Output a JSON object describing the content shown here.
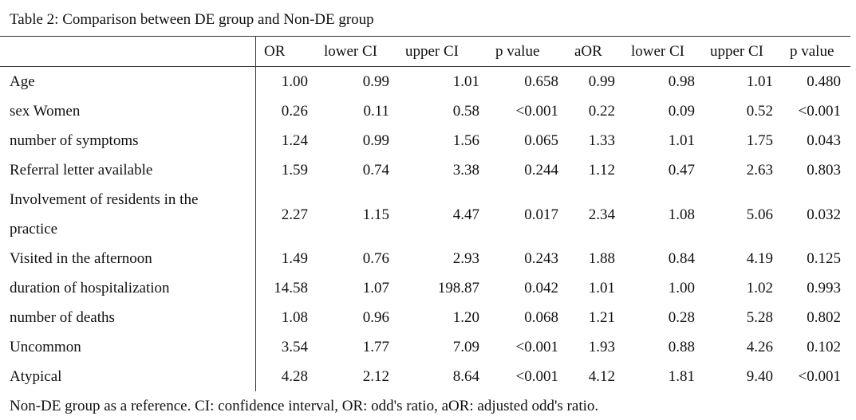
{
  "caption": "Table 2: Comparison between DE group and Non-DE group",
  "table": {
    "header": [
      "OR",
      "lower CI",
      "upper CI",
      "p value",
      "aOR",
      "lower CI",
      "upper CI",
      "p value"
    ],
    "rows": [
      [
        "Age",
        "1.00",
        "0.99",
        "1.01",
        "0.658",
        "0.99",
        "0.98",
        "1.01",
        "0.480"
      ],
      [
        "sex Women",
        "0.26",
        "0.11",
        "0.58",
        "<0.001",
        "0.22",
        "0.09",
        "0.52",
        "<0.001"
      ],
      [
        "number of symptoms",
        "1.24",
        "0.99",
        "1.56",
        "0.065",
        "1.33",
        "1.01",
        "1.75",
        "0.043"
      ],
      [
        "Referral letter available",
        "1.59",
        "0.74",
        "3.38",
        "0.244",
        "1.12",
        "0.47",
        "2.63",
        "0.803"
      ],
      [
        "Involvement of residents in the practice",
        "2.27",
        "1.15",
        "4.47",
        "0.017",
        "2.34",
        "1.08",
        "5.06",
        "0.032"
      ],
      [
        "Visited in the afternoon",
        "1.49",
        "0.76",
        "2.93",
        "0.243",
        "1.88",
        "0.84",
        "4.19",
        "0.125"
      ],
      [
        "duration of hospitalization",
        "14.58",
        "1.07",
        "198.87",
        "0.042",
        "1.01",
        "1.00",
        "1.02",
        "0.993"
      ],
      [
        "number of deaths",
        "1.08",
        "0.96",
        "1.20",
        "0.068",
        "1.21",
        "0.28",
        "5.28",
        "0.802"
      ],
      [
        "Uncommon",
        "3.54",
        "1.77",
        "7.09",
        "<0.001",
        "1.93",
        "0.88",
        "4.26",
        "0.102"
      ],
      [
        "Atypical",
        "4.28",
        "2.12",
        "8.64",
        "<0.001",
        "4.12",
        "1.81",
        "9.40",
        "<0.001"
      ]
    ]
  },
  "footnote": "Non-DE group as a reference. CI: confidence interval, OR: odd's ratio, aOR: adjusted odd's ratio."
}
